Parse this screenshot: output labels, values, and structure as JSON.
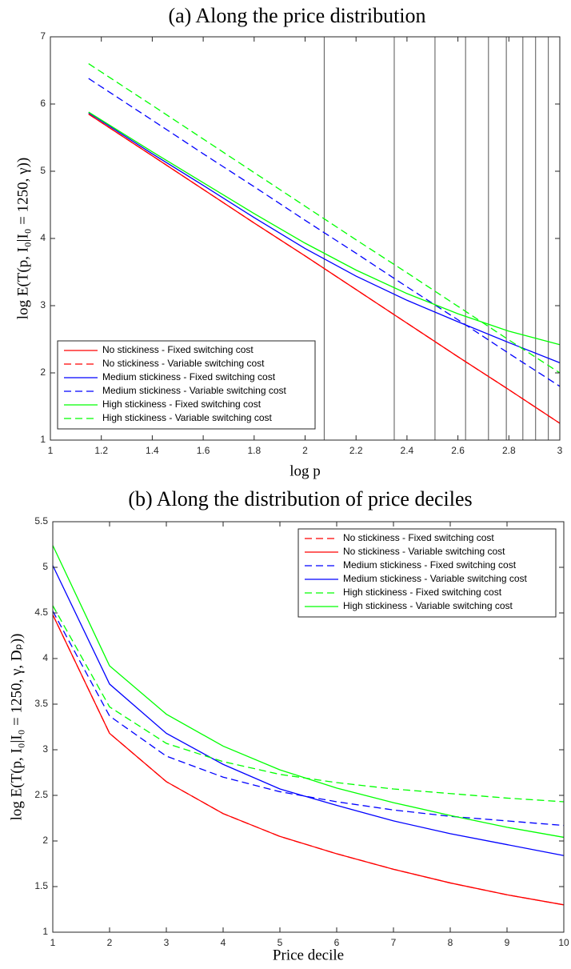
{
  "chart_data": [
    {
      "type": "line",
      "title": "(a) Along the price distribution",
      "x_label": "log p",
      "y_label": "log E(T(p, I₀|I₀ = 1250, γ))",
      "x": [
        1.15,
        1.4,
        1.6,
        1.8,
        2.0,
        2.2,
        2.4,
        2.6,
        2.8,
        3.0
      ],
      "series": [
        {
          "name": "No stickiness - Fixed switching cost",
          "color": "#ff0000",
          "style": "solid",
          "values": [
            5.85,
            5.23,
            4.73,
            4.23,
            3.74,
            3.24,
            2.74,
            2.24,
            1.75,
            1.25
          ]
        },
        {
          "name": "No stickiness - Variable switching cost",
          "color": "#ff0000",
          "style": "dashed",
          "values": [
            5.85,
            5.23,
            4.73,
            4.23,
            3.74,
            3.24,
            2.74,
            2.24,
            1.75,
            1.25
          ]
        },
        {
          "name": "Medium stickiness - Fixed switching cost",
          "color": "#0000ff",
          "style": "solid",
          "values": [
            5.87,
            5.26,
            4.79,
            4.31,
            3.85,
            3.44,
            3.08,
            2.76,
            2.45,
            2.15
          ]
        },
        {
          "name": "Medium stickiness - Variable switching cost",
          "color": "#0000ff",
          "style": "dashed",
          "values": [
            6.38,
            5.76,
            5.26,
            4.77,
            4.27,
            3.78,
            3.28,
            2.79,
            2.29,
            1.8
          ]
        },
        {
          "name": "High stickiness - Fixed switching cost",
          "color": "#00ff00",
          "style": "solid",
          "values": [
            5.88,
            5.29,
            4.83,
            4.37,
            3.93,
            3.53,
            3.18,
            2.88,
            2.62,
            2.42
          ]
        },
        {
          "name": "High stickiness - Variable switching cost",
          "color": "#00ff00",
          "style": "dashed",
          "values": [
            6.6,
            5.98,
            5.48,
            4.98,
            4.48,
            3.98,
            3.49,
            2.99,
            2.49,
            2.0
          ]
        }
      ],
      "vlines": [
        2.075,
        2.35,
        2.51,
        2.63,
        2.72,
        2.79,
        2.855,
        2.905,
        2.955
      ],
      "xlim": [
        1,
        3
      ],
      "xticks": [
        1,
        1.2,
        1.4,
        1.6,
        1.8,
        2,
        2.2,
        2.4,
        2.6,
        2.8,
        3
      ],
      "ylim": [
        1,
        7
      ],
      "yticks": [
        1,
        2,
        3,
        4,
        5,
        6,
        7
      ],
      "legend": "lower left",
      "grid": false
    },
    {
      "type": "line",
      "title": "(b) Along the distribution of price deciles",
      "x_label": "Price decile",
      "y_label": "log E(T(p, I₀|I₀ = 1250, γ, Dₚ))",
      "x": [
        1,
        2,
        3,
        4,
        5,
        6,
        7,
        8,
        9,
        10
      ],
      "series": [
        {
          "name": "No stickiness - Fixed switching cost",
          "color": "#ff0000",
          "style": "dashed",
          "values": [
            4.48,
            3.18,
            2.65,
            2.3,
            2.05,
            1.86,
            1.69,
            1.54,
            1.41,
            1.3
          ]
        },
        {
          "name": "No stickiness - Variable switching cost",
          "color": "#ff0000",
          "style": "solid",
          "values": [
            4.48,
            3.18,
            2.65,
            2.3,
            2.05,
            1.86,
            1.69,
            1.54,
            1.41,
            1.3
          ]
        },
        {
          "name": "Medium stickiness - Fixed switching cost",
          "color": "#0000ff",
          "style": "dashed",
          "values": [
            4.52,
            3.37,
            2.93,
            2.7,
            2.54,
            2.43,
            2.34,
            2.27,
            2.22,
            2.17
          ]
        },
        {
          "name": "Medium stickiness - Variable switching cost",
          "color": "#0000ff",
          "style": "solid",
          "values": [
            5.02,
            3.72,
            3.18,
            2.84,
            2.57,
            2.39,
            2.22,
            2.08,
            1.96,
            1.84
          ]
        },
        {
          "name": "High stickiness - Fixed switching cost",
          "color": "#00ff00",
          "style": "dashed",
          "values": [
            4.58,
            3.47,
            3.07,
            2.87,
            2.73,
            2.64,
            2.57,
            2.52,
            2.47,
            2.43
          ]
        },
        {
          "name": "High stickiness - Variable switching cost",
          "color": "#00ff00",
          "style": "solid",
          "values": [
            5.24,
            3.92,
            3.39,
            3.04,
            2.78,
            2.58,
            2.42,
            2.28,
            2.15,
            2.04
          ]
        }
      ],
      "xlim": [
        1,
        10
      ],
      "xticks": [
        1,
        2,
        3,
        4,
        5,
        6,
        7,
        8,
        9,
        10
      ],
      "ylim": [
        1,
        5.5
      ],
      "yticks": [
        1,
        1.5,
        2,
        2.5,
        3,
        3.5,
        4,
        4.5,
        5,
        5.5
      ],
      "legend": "upper right",
      "grid": false
    }
  ]
}
